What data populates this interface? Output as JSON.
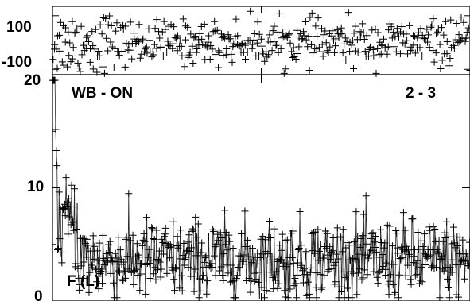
{
  "chart_data": [
    {
      "type": "scatter",
      "panel": "top",
      "title": "",
      "xlabel": "",
      "ylabel": "",
      "ylim": [
        -120,
        135
      ],
      "yticks": [
        100,
        -100
      ],
      "ytick_labels": [
        "100",
        "-100"
      ],
      "xlim": [
        0,
        100
      ],
      "grid": false,
      "marker": "plus",
      "series": [
        {
          "y_mean": 0,
          "y_spread": 45,
          "n_points": 420
        }
      ]
    },
    {
      "type": "line",
      "panel": "bottom",
      "title": "",
      "xlabel": "",
      "ylabel": "",
      "ylim": [
        0,
        20
      ],
      "yticks": [
        20,
        10,
        0
      ],
      "ytick_labels": [
        "20",
        "10",
        "0"
      ],
      "xlim": [
        0,
        100
      ],
      "grid": false,
      "marker": "plus",
      "annotations": {
        "left": "WB - ON",
        "right": "2 - 3",
        "bottom_left": "F (L)"
      },
      "series": [
        {
          "profile": "spike-near-zero-then-noise",
          "peak_value": 19.5,
          "baseline_mean": 3.6,
          "baseline_spread": 1.8,
          "n_points": 600
        }
      ]
    }
  ]
}
